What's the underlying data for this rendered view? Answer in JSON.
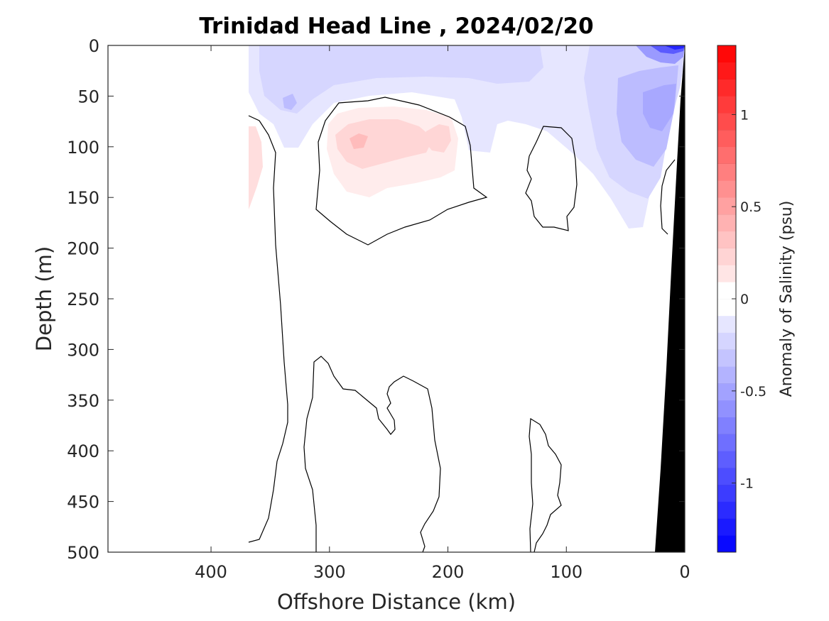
{
  "chart_data": {
    "type": "contour",
    "title": "Trinidad Head Line , 2024/02/20",
    "xlabel": "Offshore Distance (km)",
    "ylabel": "Depth (m)",
    "xlim": [
      487,
      0
    ],
    "ylim": [
      500,
      0
    ],
    "x_reversed": true,
    "y_reversed": true,
    "x_ticks": [
      400,
      300,
      200,
      100,
      0
    ],
    "y_ticks": [
      0,
      50,
      100,
      150,
      200,
      250,
      300,
      350,
      400,
      450,
      500
    ],
    "colorbar": {
      "label": "Anomaly of Salinity (psu)",
      "range": [
        -1.375,
        1.375
      ],
      "level_step": 0.0917,
      "ticks": [
        1,
        0.5,
        0,
        -0.5,
        -1
      ],
      "tick_labels": [
        "1",
        "0.5",
        "0",
        "-0.5",
        "-1"
      ],
      "colors": {
        "max_positive": "#ff0000",
        "zero": "#ffffff",
        "max_negative": "#0000ff"
      }
    },
    "contour_line_value": 0,
    "bathymetry_color": "#000000",
    "anomaly_regions": [
      {
        "name": "surface-fresh-band",
        "sign": "negative",
        "level": -0.1,
        "x_km_range": [
          367,
          0
        ],
        "depth_m_range": [
          0,
          180
        ]
      },
      {
        "name": "offshore-fresh-patch",
        "sign": "negative",
        "level": -0.2,
        "x_km_range": [
          355,
          335
        ],
        "depth_m_range": [
          0,
          65
        ]
      },
      {
        "name": "nearshore-fresh-core",
        "sign": "negative",
        "level": -0.4,
        "x_km_range": [
          90,
          0
        ],
        "depth_m_range": [
          0,
          140
        ]
      },
      {
        "name": "coastal-surface-minimum",
        "sign": "negative",
        "level": -1.3,
        "x_km_range": [
          30,
          0
        ],
        "depth_m_range": [
          0,
          10
        ]
      },
      {
        "name": "subsurface-salty-core",
        "sign": "positive",
        "level": 0.3,
        "x_km_range": [
          310,
          195
        ],
        "depth_m_range": [
          70,
          150
        ]
      },
      {
        "name": "offshore-salty-edge",
        "sign": "positive",
        "level": 0.15,
        "x_km_range": [
          370,
          360
        ],
        "depth_m_range": [
          80,
          160
        ]
      }
    ]
  }
}
